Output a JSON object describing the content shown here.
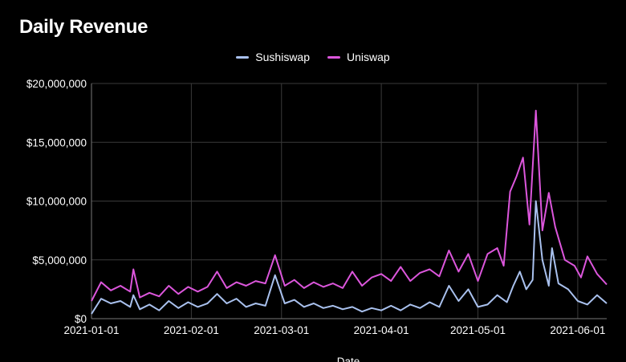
{
  "chart_data": {
    "type": "line",
    "title": "Daily Revenue",
    "xlabel": "Date",
    "ylabel": "",
    "ylim": [
      0,
      20000000
    ],
    "xlim": [
      "2021-01-01",
      "2021-06-10"
    ],
    "grid": true,
    "legend_position": "top-center",
    "y_ticks": [
      {
        "value": 0,
        "label": "$0"
      },
      {
        "value": 5000000,
        "label": "$5,000,000"
      },
      {
        "value": 10000000,
        "label": "$10,000,000"
      },
      {
        "value": 15000000,
        "label": "$15,000,000"
      },
      {
        "value": 20000000,
        "label": "$20,000,000"
      }
    ],
    "x_ticks": [
      {
        "value": "2021-01-01",
        "label": "2021-01-01"
      },
      {
        "value": "2021-02-01",
        "label": "2021-02-01"
      },
      {
        "value": "2021-03-01",
        "label": "2021-03-01"
      },
      {
        "value": "2021-04-01",
        "label": "2021-04-01"
      },
      {
        "value": "2021-05-01",
        "label": "2021-05-01"
      },
      {
        "value": "2021-06-01",
        "label": "2021-06-01"
      }
    ],
    "series": [
      {
        "name": "Sushiswap",
        "color": "#a9c1ee",
        "points": [
          [
            "2021-01-01",
            400000
          ],
          [
            "2021-01-04",
            1700000
          ],
          [
            "2021-01-07",
            1300000
          ],
          [
            "2021-01-10",
            1500000
          ],
          [
            "2021-01-13",
            1000000
          ],
          [
            "2021-01-14",
            2000000
          ],
          [
            "2021-01-16",
            800000
          ],
          [
            "2021-01-19",
            1200000
          ],
          [
            "2021-01-22",
            700000
          ],
          [
            "2021-01-25",
            1500000
          ],
          [
            "2021-01-28",
            900000
          ],
          [
            "2021-01-31",
            1400000
          ],
          [
            "2021-02-03",
            1000000
          ],
          [
            "2021-02-06",
            1300000
          ],
          [
            "2021-02-09",
            2100000
          ],
          [
            "2021-02-12",
            1300000
          ],
          [
            "2021-02-15",
            1700000
          ],
          [
            "2021-02-18",
            1000000
          ],
          [
            "2021-02-21",
            1300000
          ],
          [
            "2021-02-24",
            1100000
          ],
          [
            "2021-02-27",
            3700000
          ],
          [
            "2021-03-02",
            1300000
          ],
          [
            "2021-03-05",
            1600000
          ],
          [
            "2021-03-08",
            1000000
          ],
          [
            "2021-03-11",
            1300000
          ],
          [
            "2021-03-14",
            900000
          ],
          [
            "2021-03-17",
            1100000
          ],
          [
            "2021-03-20",
            800000
          ],
          [
            "2021-03-23",
            1000000
          ],
          [
            "2021-03-26",
            600000
          ],
          [
            "2021-03-29",
            900000
          ],
          [
            "2021-04-01",
            700000
          ],
          [
            "2021-04-04",
            1100000
          ],
          [
            "2021-04-07",
            700000
          ],
          [
            "2021-04-10",
            1200000
          ],
          [
            "2021-04-13",
            900000
          ],
          [
            "2021-04-16",
            1400000
          ],
          [
            "2021-04-19",
            1000000
          ],
          [
            "2021-04-22",
            2800000
          ],
          [
            "2021-04-25",
            1500000
          ],
          [
            "2021-04-28",
            2500000
          ],
          [
            "2021-05-01",
            1000000
          ],
          [
            "2021-05-04",
            1200000
          ],
          [
            "2021-05-07",
            2000000
          ],
          [
            "2021-05-10",
            1400000
          ],
          [
            "2021-05-12",
            2800000
          ],
          [
            "2021-05-14",
            4000000
          ],
          [
            "2021-05-16",
            2500000
          ],
          [
            "2021-05-18",
            3300000
          ],
          [
            "2021-05-19",
            10000000
          ],
          [
            "2021-05-21",
            5000000
          ],
          [
            "2021-05-23",
            2800000
          ],
          [
            "2021-05-24",
            6000000
          ],
          [
            "2021-05-26",
            3000000
          ],
          [
            "2021-05-29",
            2500000
          ],
          [
            "2021-06-01",
            1500000
          ],
          [
            "2021-06-04",
            1200000
          ],
          [
            "2021-06-07",
            2000000
          ],
          [
            "2021-06-10",
            1300000
          ]
        ]
      },
      {
        "name": "Uniswap",
        "color": "#dc56dc",
        "points": [
          [
            "2021-01-01",
            1500000
          ],
          [
            "2021-01-04",
            3100000
          ],
          [
            "2021-01-07",
            2400000
          ],
          [
            "2021-01-10",
            2800000
          ],
          [
            "2021-01-13",
            2300000
          ],
          [
            "2021-01-14",
            4200000
          ],
          [
            "2021-01-16",
            1800000
          ],
          [
            "2021-01-19",
            2200000
          ],
          [
            "2021-01-22",
            1900000
          ],
          [
            "2021-01-25",
            2800000
          ],
          [
            "2021-01-28",
            2100000
          ],
          [
            "2021-01-31",
            2700000
          ],
          [
            "2021-02-03",
            2300000
          ],
          [
            "2021-02-06",
            2700000
          ],
          [
            "2021-02-09",
            4000000
          ],
          [
            "2021-02-12",
            2600000
          ],
          [
            "2021-02-15",
            3100000
          ],
          [
            "2021-02-18",
            2800000
          ],
          [
            "2021-02-21",
            3200000
          ],
          [
            "2021-02-24",
            3000000
          ],
          [
            "2021-02-27",
            5400000
          ],
          [
            "2021-03-02",
            2800000
          ],
          [
            "2021-03-05",
            3300000
          ],
          [
            "2021-03-08",
            2600000
          ],
          [
            "2021-03-11",
            3100000
          ],
          [
            "2021-03-14",
            2700000
          ],
          [
            "2021-03-17",
            3000000
          ],
          [
            "2021-03-20",
            2600000
          ],
          [
            "2021-03-23",
            4000000
          ],
          [
            "2021-03-26",
            2800000
          ],
          [
            "2021-03-29",
            3500000
          ],
          [
            "2021-04-01",
            3800000
          ],
          [
            "2021-04-04",
            3200000
          ],
          [
            "2021-04-07",
            4400000
          ],
          [
            "2021-04-10",
            3200000
          ],
          [
            "2021-04-13",
            3900000
          ],
          [
            "2021-04-16",
            4200000
          ],
          [
            "2021-04-19",
            3600000
          ],
          [
            "2021-04-22",
            5800000
          ],
          [
            "2021-04-25",
            4000000
          ],
          [
            "2021-04-28",
            5500000
          ],
          [
            "2021-05-01",
            3200000
          ],
          [
            "2021-05-04",
            5500000
          ],
          [
            "2021-05-07",
            6000000
          ],
          [
            "2021-05-09",
            4500000
          ],
          [
            "2021-05-11",
            10800000
          ],
          [
            "2021-05-13",
            12100000
          ],
          [
            "2021-05-15",
            13700000
          ],
          [
            "2021-05-17",
            8000000
          ],
          [
            "2021-05-19",
            17700000
          ],
          [
            "2021-05-21",
            7500000
          ],
          [
            "2021-05-23",
            10700000
          ],
          [
            "2021-05-25",
            7800000
          ],
          [
            "2021-05-28",
            5000000
          ],
          [
            "2021-05-31",
            4500000
          ],
          [
            "2021-06-02",
            3500000
          ],
          [
            "2021-06-04",
            5300000
          ],
          [
            "2021-06-07",
            3800000
          ],
          [
            "2021-06-10",
            2900000
          ]
        ]
      }
    ]
  }
}
